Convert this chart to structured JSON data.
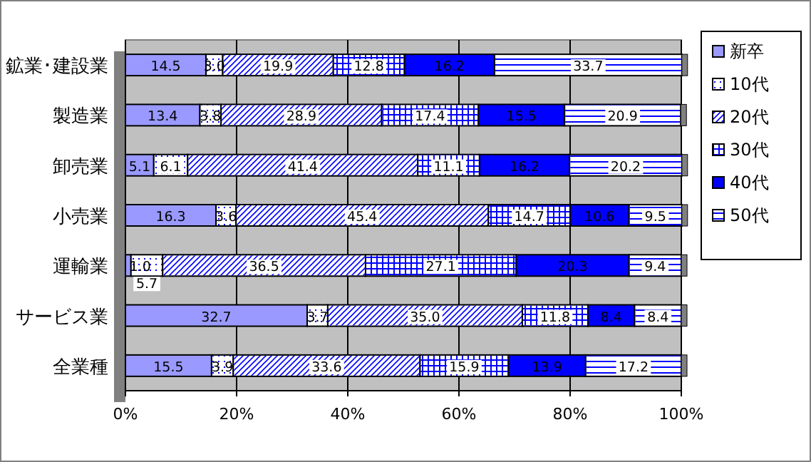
{
  "chart_data": {
    "type": "bar",
    "orientation": "horizontal",
    "stacked": true,
    "grid": "x",
    "legend": "right",
    "categories": [
      "鉱業･建設業",
      "製造業",
      "卸売業",
      "小売業",
      "運輸業",
      "サービス業",
      "全業種"
    ],
    "xlim": [
      0,
      100
    ],
    "xticks": [
      {
        "value": 0,
        "label": "0%"
      },
      {
        "value": 20,
        "label": "20%"
      },
      {
        "value": 40,
        "label": "40%"
      },
      {
        "value": 60,
        "label": "60%"
      },
      {
        "value": 80,
        "label": "80%"
      },
      {
        "value": 100,
        "label": "100%"
      }
    ],
    "series": [
      {
        "name": "新卒",
        "color": "#9999ff",
        "values": [
          14.5,
          13.4,
          5.1,
          16.3,
          1.0,
          32.7,
          15.5
        ],
        "value_labels": [
          "14.5",
          "13.4",
          "5.1",
          "16.3",
          "1.0",
          "32.7",
          "15.5"
        ]
      },
      {
        "name": "10代",
        "color": "#ffffff",
        "values": [
          3.0,
          3.8,
          6.1,
          3.6,
          5.7,
          3.7,
          3.9
        ],
        "value_labels": [
          "3.0",
          "3.8",
          "6.1",
          "3.6",
          "5.7",
          "3.7",
          "3.9"
        ]
      },
      {
        "name": "20代",
        "color": "#ffffff",
        "values": [
          19.9,
          28.9,
          41.4,
          45.4,
          36.5,
          35.0,
          33.6
        ],
        "value_labels": [
          "19.9",
          "28.9",
          "41.4",
          "45.4",
          "36.5",
          "35.0",
          "33.6"
        ]
      },
      {
        "name": "30代",
        "color": "#ffffff",
        "values": [
          12.8,
          17.4,
          11.1,
          14.7,
          27.1,
          11.8,
          15.9
        ],
        "value_labels": [
          "12.8",
          "17.4",
          "11.1",
          "14.7",
          "27.1",
          "11.8",
          "15.9"
        ]
      },
      {
        "name": "40代",
        "color": "#0000ff",
        "values": [
          16.2,
          15.5,
          16.2,
          10.6,
          20.3,
          8.4,
          13.9
        ],
        "value_labels": [
          "16.2",
          "15.5",
          "16.2",
          "10.6",
          "20.3",
          "8.4",
          "13.9"
        ]
      },
      {
        "name": "50代",
        "color": "#ffffff",
        "values": [
          33.7,
          20.9,
          20.2,
          9.5,
          9.4,
          8.4,
          17.2
        ],
        "value_labels": [
          "33.7",
          "20.9",
          "20.2",
          "9.5",
          "9.4",
          "8.4",
          "17.2"
        ]
      }
    ]
  }
}
